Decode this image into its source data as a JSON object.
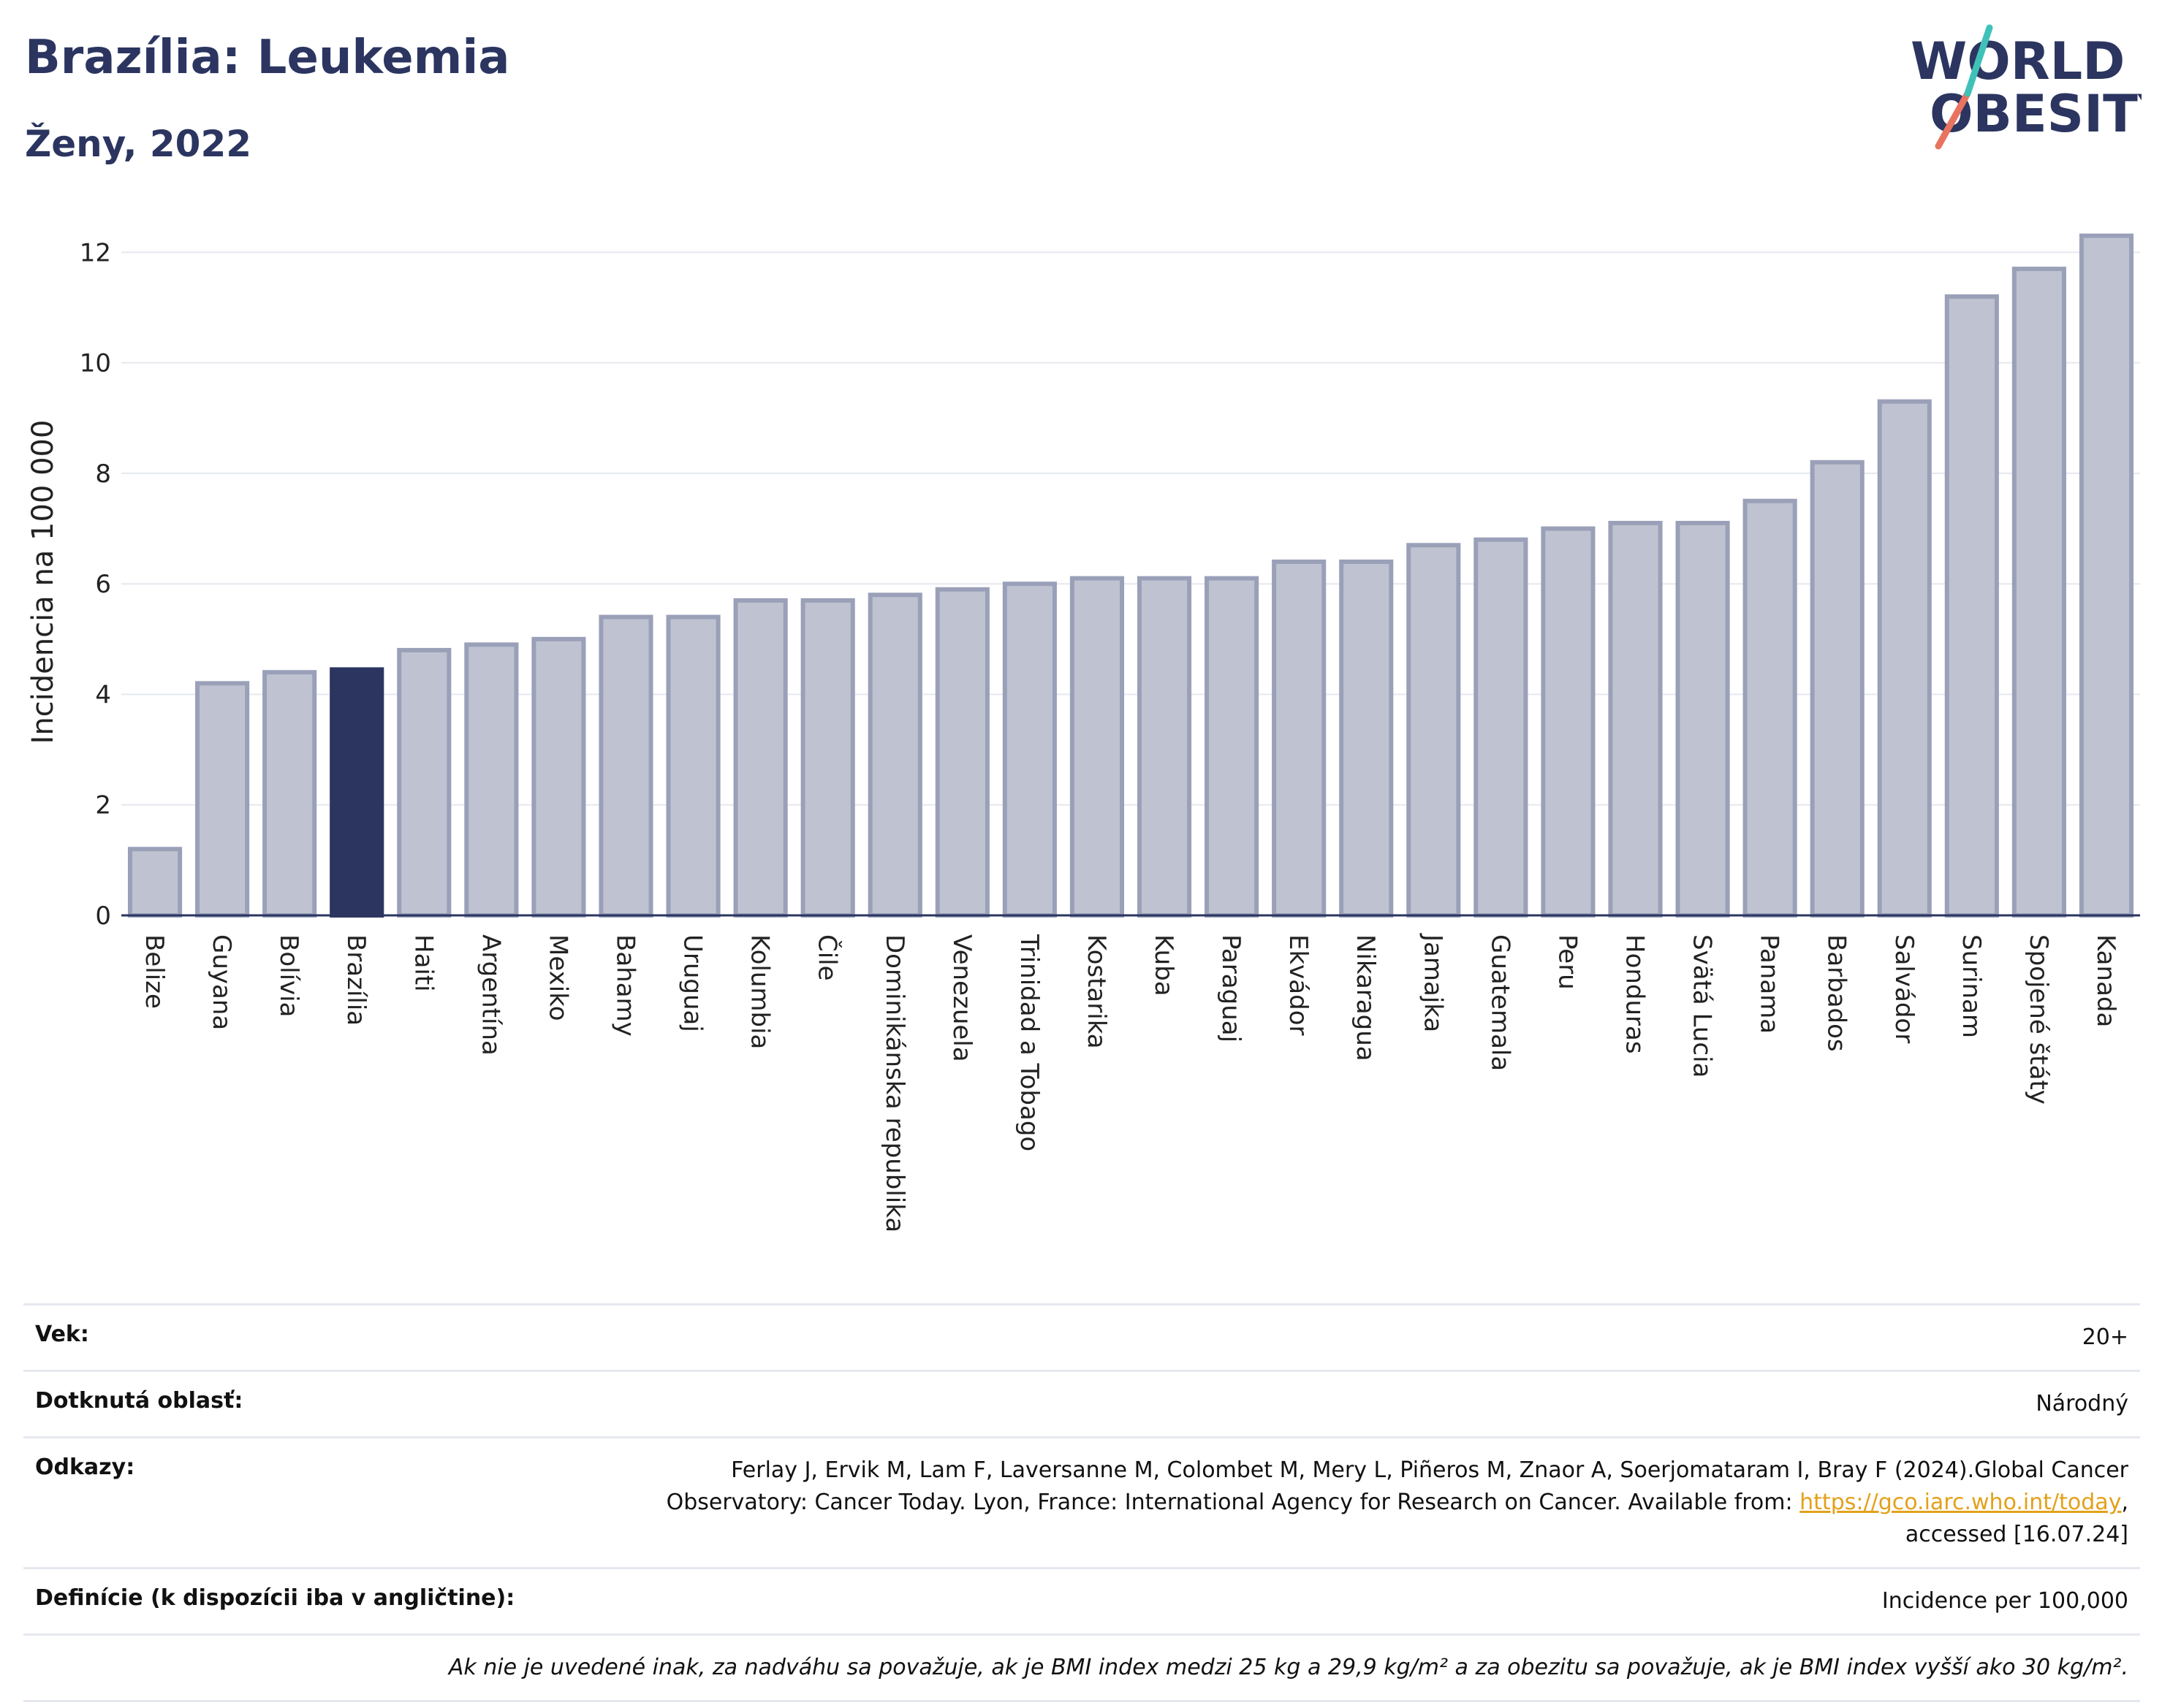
{
  "header": {
    "title": "Brazília: Leukemia",
    "subtitle": "Ženy, 2022"
  },
  "logo": {
    "line1": "WORLD",
    "line2": "OBESITY"
  },
  "colors": {
    "bar": "#bfc3d1",
    "bar_stroke": "#9aa0b8",
    "highlight": "#2b3560",
    "grid": "#e6e8ef",
    "axis": "#2b3560"
  },
  "chart_data": {
    "type": "bar",
    "ylabel": "Incidencia na 100 000",
    "ylim": [
      0,
      12.6
    ],
    "yticks": [
      0,
      2,
      4,
      6,
      8,
      10,
      12
    ],
    "highlight": "Brazília",
    "categories": [
      "Belize",
      "Guyana",
      "Bolívia",
      "Brazília",
      "Haiti",
      "Argentína",
      "Mexiko",
      "Bahamy",
      "Uruguaj",
      "Kolumbia",
      "Čile",
      "Dominikánska republika",
      "Venezuela",
      "Trinidad a Tobago",
      "Kostarika",
      "Kuba",
      "Paraguaj",
      "Ekvádor",
      "Nikaragua",
      "Jamajka",
      "Guatemala",
      "Peru",
      "Honduras",
      "Svätá Lucia",
      "Panama",
      "Barbados",
      "Salvádor",
      "Surinam",
      "Spojené štáty",
      "Kanada"
    ],
    "values": [
      1.2,
      4.2,
      4.4,
      4.45,
      4.8,
      4.9,
      5.0,
      5.4,
      5.4,
      5.7,
      5.7,
      5.8,
      5.9,
      6.0,
      6.1,
      6.1,
      6.1,
      6.4,
      6.4,
      6.7,
      6.8,
      7.0,
      7.1,
      7.1,
      7.5,
      8.2,
      9.3,
      11.2,
      11.7,
      12.3
    ]
  },
  "info": {
    "age_label": "Vek:",
    "age_value": "20+",
    "area_label": "Dotknutá oblasť:",
    "area_value": "Národný",
    "refs_label": "Odkazy:",
    "refs_text_1": "Ferlay J, Ervik M, Lam F, Laversanne M, Colombet M, Mery L, Piñeros M, Znaor A, Soerjomataram I, Bray F (2024).Global Cancer Observatory: Cancer Today. Lyon, France: International Agency for Research on Cancer. Available from: ",
    "refs_link": "https://gco.iarc.who.int/today",
    "refs_text_2": ", accessed [16.07.24]",
    "def_label": "Definície (k dispozícii iba v angličtine):",
    "def_value": "Incidence per 100,000",
    "note": "Ak nie je uvedené inak, za nadváhu sa považuje, ak je BMI index medzi 25 kg a 29,9 kg/m² a za obezitu sa považuje, ak je BMI index vyšší ako 30 kg/m²."
  }
}
